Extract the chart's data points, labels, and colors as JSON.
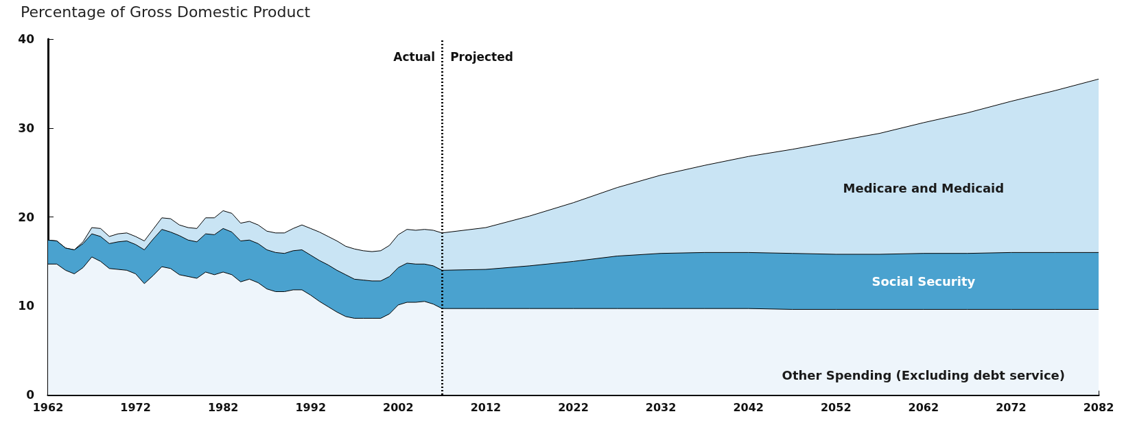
{
  "chart_data": {
    "type": "area",
    "stacked": true,
    "ylabel": "Percentage of Gross Domestic Product",
    "x": [
      1962,
      1963,
      1964,
      1965,
      1966,
      1967,
      1968,
      1969,
      1970,
      1971,
      1972,
      1973,
      1974,
      1975,
      1976,
      1977,
      1978,
      1979,
      1980,
      1981,
      1982,
      1983,
      1984,
      1985,
      1986,
      1987,
      1988,
      1989,
      1990,
      1991,
      1992,
      1993,
      1994,
      1995,
      1996,
      1997,
      1998,
      1999,
      2000,
      2001,
      2002,
      2003,
      2004,
      2005,
      2006,
      2007,
      2012,
      2017,
      2022,
      2027,
      2032,
      2037,
      2042,
      2047,
      2052,
      2057,
      2062,
      2067,
      2072,
      2077,
      2082
    ],
    "series": [
      {
        "name": "Other Spending (Excluding debt service)",
        "color": "#eef5fb",
        "values": [
          14.7,
          14.7,
          14.0,
          13.6,
          14.3,
          15.5,
          15.0,
          14.2,
          14.1,
          14.0,
          13.6,
          12.5,
          13.4,
          14.4,
          14.2,
          13.5,
          13.3,
          13.1,
          13.8,
          13.5,
          13.8,
          13.5,
          12.7,
          13.0,
          12.6,
          11.9,
          11.6,
          11.6,
          11.8,
          11.8,
          11.2,
          10.5,
          9.9,
          9.3,
          8.8,
          8.6,
          8.6,
          8.6,
          8.6,
          9.1,
          10.1,
          10.4,
          10.4,
          10.5,
          10.2,
          9.7,
          9.7,
          9.7,
          9.7,
          9.7,
          9.7,
          9.7,
          9.7,
          9.6,
          9.6,
          9.6,
          9.6,
          9.6,
          9.6,
          9.6,
          9.6
        ]
      },
      {
        "name": "Social Security",
        "color": "#4aa2cf",
        "values": [
          2.7,
          2.6,
          2.5,
          2.7,
          2.7,
          2.6,
          2.8,
          2.8,
          3.1,
          3.3,
          3.3,
          3.8,
          4.1,
          4.2,
          4.1,
          4.4,
          4.1,
          4.1,
          4.3,
          4.5,
          4.9,
          4.8,
          4.6,
          4.4,
          4.4,
          4.4,
          4.4,
          4.3,
          4.4,
          4.5,
          4.5,
          4.6,
          4.7,
          4.7,
          4.7,
          4.4,
          4.3,
          4.2,
          4.2,
          4.2,
          4.2,
          4.4,
          4.3,
          4.2,
          4.3,
          4.3,
          4.4,
          4.8,
          5.3,
          5.9,
          6.2,
          6.3,
          6.3,
          6.3,
          6.2,
          6.2,
          6.3,
          6.3,
          6.4,
          6.4,
          6.4
        ]
      },
      {
        "name": "Medicare and Medicaid",
        "color": "#c9e4f4",
        "values": [
          0.0,
          0.0,
          0.0,
          0.0,
          0.2,
          0.7,
          0.9,
          0.8,
          0.9,
          0.9,
          0.9,
          1.0,
          1.1,
          1.3,
          1.5,
          1.2,
          1.4,
          1.5,
          1.8,
          1.9,
          2.0,
          2.1,
          2.0,
          2.1,
          2.1,
          2.1,
          2.2,
          2.3,
          2.5,
          2.8,
          3.0,
          3.2,
          3.2,
          3.3,
          3.2,
          3.4,
          3.3,
          3.3,
          3.4,
          3.5,
          3.7,
          3.8,
          3.8,
          3.9,
          4.0,
          4.2,
          4.7,
          5.6,
          6.6,
          7.7,
          8.8,
          9.8,
          10.8,
          11.7,
          12.7,
          13.6,
          14.7,
          15.8,
          17.0,
          18.2,
          19.5
        ]
      }
    ],
    "xlim": [
      1962,
      2082
    ],
    "xticks": [
      1962,
      1972,
      1982,
      1992,
      2002,
      2012,
      2022,
      2032,
      2042,
      2052,
      2062,
      2072,
      2082
    ],
    "ylim": [
      0,
      40
    ],
    "yticks": [
      0,
      10,
      20,
      30,
      40
    ],
    "grid": false,
    "legend": false,
    "ref_lines": [
      {
        "axis": "x",
        "value": 2007,
        "label": null,
        "color": "#000000",
        "line_style": "dotted"
      }
    ],
    "annotations": [
      {
        "text": "Actual",
        "x": 2007,
        "y": 38
      },
      {
        "text": "Projected",
        "x": 2007,
        "y": 38
      }
    ]
  }
}
